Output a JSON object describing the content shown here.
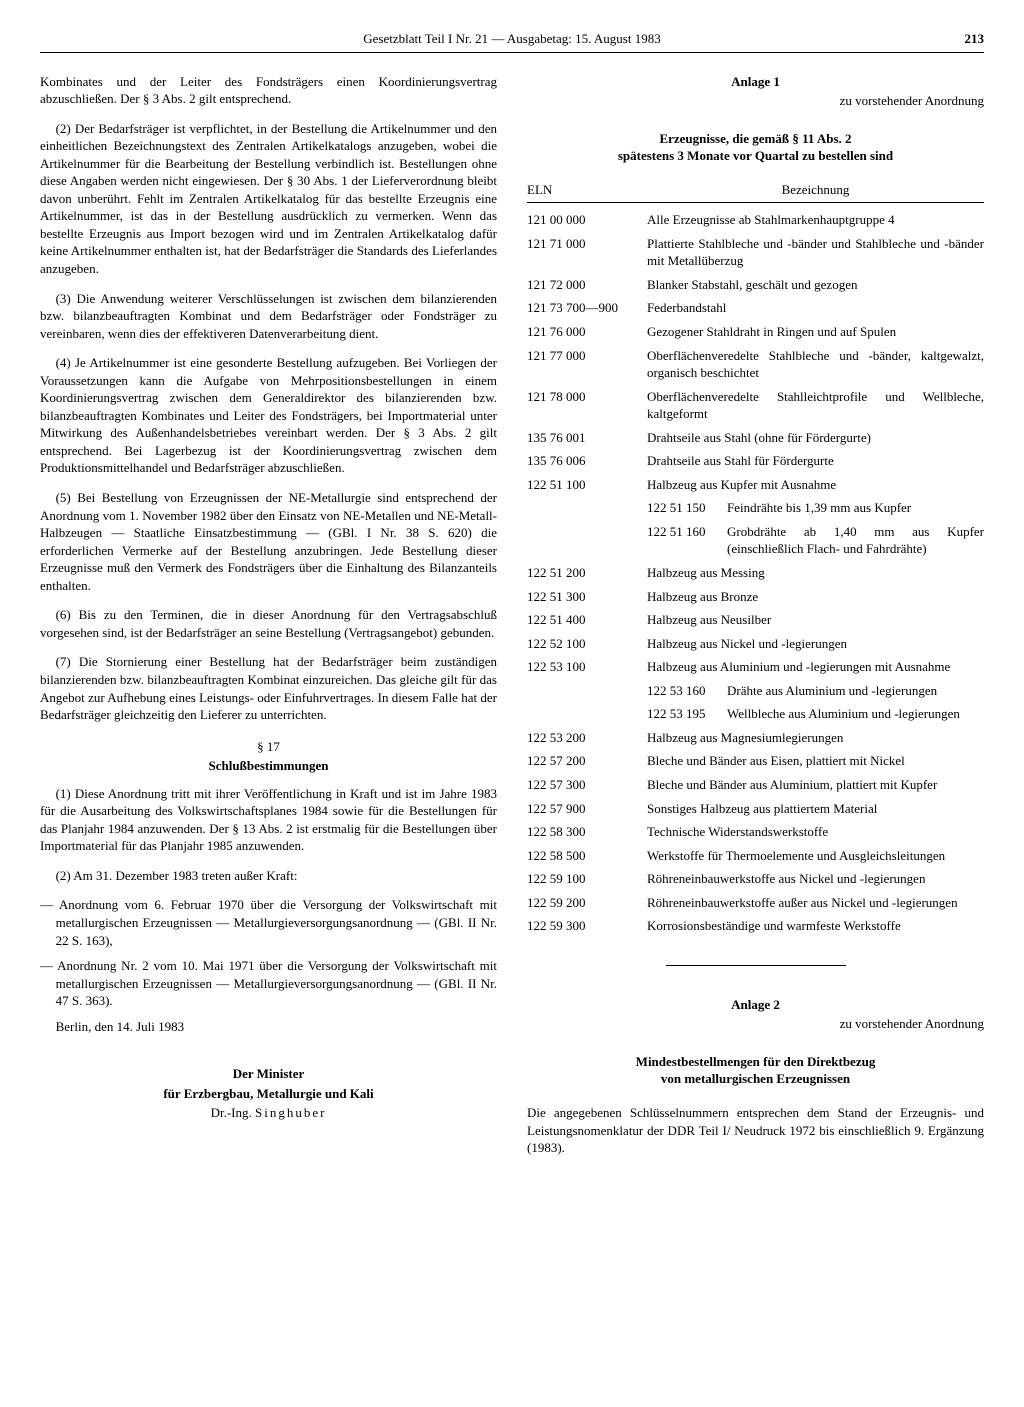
{
  "header": {
    "title": "Gesetzblatt Teil I Nr. 21 — Ausgabetag: 15. August 1983",
    "page": "213"
  },
  "left": {
    "p0": "Kombinates und der Leiter des Fondsträgers einen Koordinierungsvertrag abzuschließen. Der § 3 Abs. 2 gilt entsprechend.",
    "p2": "(2) Der Bedarfsträger ist verpflichtet, in der Bestellung die Artikelnummer und den einheitlichen Bezeichnungstext des Zentralen Artikelkatalogs anzugeben, wobei die Artikelnummer für die Bearbeitung der Bestellung verbindlich ist. Bestellungen ohne diese Angaben werden nicht eingewiesen. Der § 30 Abs. 1 der Lieferverordnung bleibt davon unberührt. Fehlt im Zentralen Artikelkatalog für das bestellte Erzeugnis eine Artikelnummer, ist das in der Bestellung ausdrücklich zu vermerken. Wenn das bestellte Erzeugnis aus Import bezogen wird und im Zentralen Artikelkatalog dafür keine Artikelnummer enthalten ist, hat der Bedarfsträger die Standards des Lieferlandes anzugeben.",
    "p3": "(3) Die Anwendung weiterer Verschlüsselungen ist zwischen dem bilanzierenden bzw. bilanzbeauftragten Kombinat und dem Bedarfsträger oder Fondsträger zu vereinbaren, wenn dies der effektiveren Datenverarbeitung dient.",
    "p4": "(4) Je Artikelnummer ist eine gesonderte Bestellung aufzugeben. Bei Vorliegen der Voraussetzungen kann die Aufgabe von Mehrpositionsbestellungen in einem Koordinierungsvertrag zwischen dem Generaldirektor des bilanzierenden bzw. bilanzbeauftragten Kombinates und Leiter des Fondsträgers, bei Importmaterial unter Mitwirkung des Außenhandelsbetriebes vereinbart werden. Der § 3 Abs. 2 gilt entsprechend. Bei Lagerbezug ist der Koordinierungsvertrag zwischen dem Produktionsmittelhandel und Bedarfsträger abzuschließen.",
    "p5": "(5) Bei Bestellung von Erzeugnissen der NE-Metallurgie sind entsprechend der Anordnung vom 1. November 1982 über den Einsatz von NE-Metallen und NE-Metall-Halbzeugen — Staatliche Einsatzbestimmung — (GBl. I Nr. 38 S. 620) die erforderlichen Vermerke auf der Bestellung anzubringen. Jede Bestellung dieser Erzeugnisse muß den Vermerk des Fondsträgers über die Einhaltung des Bilanzanteils enthalten.",
    "p6": "(6) Bis zu den Terminen, die in dieser Anordnung für den Vertragsabschluß vorgesehen sind, ist der Bedarfsträger an seine Bestellung (Vertragsangebot) gebunden.",
    "p7": "(7) Die Stornierung einer Bestellung hat der Bedarfsträger beim zuständigen bilanzierenden bzw. bilanzbeauftragten Kombinat einzureichen. Das gleiche gilt für das Angebot zur Aufhebung eines Leistungs- oder Einfuhrvertrages. In diesem Falle hat der Bedarfsträger gleichzeitig den Lieferer zu unterrichten.",
    "s17": "§ 17",
    "s17title": "Schlußbestimmungen",
    "s17p1": "(1) Diese Anordnung tritt mit ihrer Veröffentlichung in Kraft und ist im Jahre 1983 für die Ausarbeitung des Volkswirtschaftsplanes 1984 sowie für die Bestellungen für das Planjahr 1984 anzuwenden. Der § 13 Abs. 2 ist erstmalig für die Bestellungen über Importmaterial für das Planjahr 1985 anzuwenden.",
    "s17p2": "(2) Am 31. Dezember 1983 treten außer Kraft:",
    "li1": "— Anordnung vom 6. Februar 1970 über die Versorgung der Volkswirtschaft mit metallurgischen Erzeugnissen — Metallurgieversorgungsanordnung — (GBl. II Nr. 22 S. 163),",
    "li2": "— Anordnung Nr. 2 vom 10. Mai 1971 über die Versorgung der Volkswirtschaft mit metallurgischen Erzeugnissen — Metallurgieversorgungsanordnung — (GBl. II Nr. 47 S. 363).",
    "place": "Berlin, den 14. Juli 1983",
    "sig1": "Der Minister",
    "sig2": "für Erzbergbau, Metallurgie und Kali",
    "sig3a": "Dr.-Ing. ",
    "sig3b": "Singhuber"
  },
  "right": {
    "anlage1": "Anlage 1",
    "anlage1sub": "zu vorstehender Anordnung",
    "tableTitle1": "Erzeugnisse, die gemäß § 11 Abs. 2",
    "tableTitle2": "spätestens 3 Monate vor Quartal zu bestellen sind",
    "hdr_eln": "ELN",
    "hdr_desc": "Bezeichnung",
    "rows": [
      {
        "eln": "121 00 000",
        "desc": "Alle Erzeugnisse ab Stahlmarkenhauptgruppe 4"
      },
      {
        "eln": "121 71 000",
        "desc": "Plattierte Stahlbleche und -bänder und Stahlbleche und -bänder mit Metallüberzug"
      },
      {
        "eln": "121 72 000",
        "desc": "Blanker Stabstahl, geschält und gezogen"
      },
      {
        "eln": "121 73 700—900",
        "desc": "Federbandstahl"
      },
      {
        "eln": "121 76 000",
        "desc": "Gezogener Stahldraht in Ringen und auf Spulen"
      },
      {
        "eln": "121 77 000",
        "desc": "Oberflächenveredelte Stahlbleche und -bänder, kaltgewalzt, organisch beschichtet"
      },
      {
        "eln": "121 78 000",
        "desc": "Oberflächenveredelte Stahlleichtprofile und Wellbleche, kaltgeformt"
      },
      {
        "eln": "135 76 001",
        "desc": "Drahtseile aus Stahl (ohne für Fördergurte)"
      },
      {
        "eln": "135 76 006",
        "desc": "Drahtseile aus Stahl für Fördergurte"
      },
      {
        "eln": "122 51 100",
        "desc": "Halbzeug aus Kupfer mit Ausnahme"
      }
    ],
    "sub1": [
      {
        "eln": "122 51 150",
        "desc": "Feindrähte bis 1,39 mm aus Kupfer"
      },
      {
        "eln": "122 51 160",
        "desc": "Grobdrähte ab 1,40 mm aus Kupfer (einschließlich Flach- und Fahrdrähte)"
      }
    ],
    "rows2": [
      {
        "eln": "122 51 200",
        "desc": "Halbzeug aus Messing"
      },
      {
        "eln": "122 51 300",
        "desc": "Halbzeug aus Bronze"
      },
      {
        "eln": "122 51 400",
        "desc": "Halbzeug aus Neusilber"
      },
      {
        "eln": "122 52 100",
        "desc": "Halbzeug aus Nickel und -legierungen"
      },
      {
        "eln": "122 53 100",
        "desc": "Halbzeug aus Aluminium und -legierungen mit Ausnahme"
      }
    ],
    "sub2": [
      {
        "eln": "122 53 160",
        "desc": "Drähte aus Aluminium und -legierungen"
      },
      {
        "eln": "122 53 195",
        "desc": "Wellbleche aus Aluminium und -legierungen"
      }
    ],
    "rows3": [
      {
        "eln": "122 53 200",
        "desc": "Halbzeug aus Magnesiumlegierungen"
      },
      {
        "eln": "122 57 200",
        "desc": "Bleche und Bänder aus Eisen, plattiert mit Nickel"
      },
      {
        "eln": "122 57 300",
        "desc": "Bleche und Bänder aus Aluminium, plattiert mit Kupfer"
      },
      {
        "eln": "122 57 900",
        "desc": "Sonstiges Halbzeug aus plattiertem Material"
      },
      {
        "eln": "122 58 300",
        "desc": "Technische Widerstandswerkstoffe"
      },
      {
        "eln": "122 58 500",
        "desc": "Werkstoffe für Thermoelemente und Ausgleichsleitungen"
      },
      {
        "eln": "122 59 100",
        "desc": "Röhreneinbauwerkstoffe aus Nickel und -legierungen"
      },
      {
        "eln": "122 59 200",
        "desc": "Röhreneinbauwerkstoffe außer aus Nickel und -legierungen"
      },
      {
        "eln": "122 59 300",
        "desc": "Korrosionsbeständige und warmfeste Werkstoffe"
      }
    ],
    "anlage2": "Anlage 2",
    "anlage2sub": "zu vorstehender Anordnung",
    "a2title1": "Mindestbestellmengen für den Direktbezug",
    "a2title2": "von metallurgischen Erzeugnissen",
    "a2text": "Die angegebenen Schlüsselnummern entsprechen dem Stand der Erzeugnis- und Leistungsnomenklatur der DDR Teil I/ Neudruck 1972 bis einschließlich 9. Ergänzung (1983)."
  }
}
